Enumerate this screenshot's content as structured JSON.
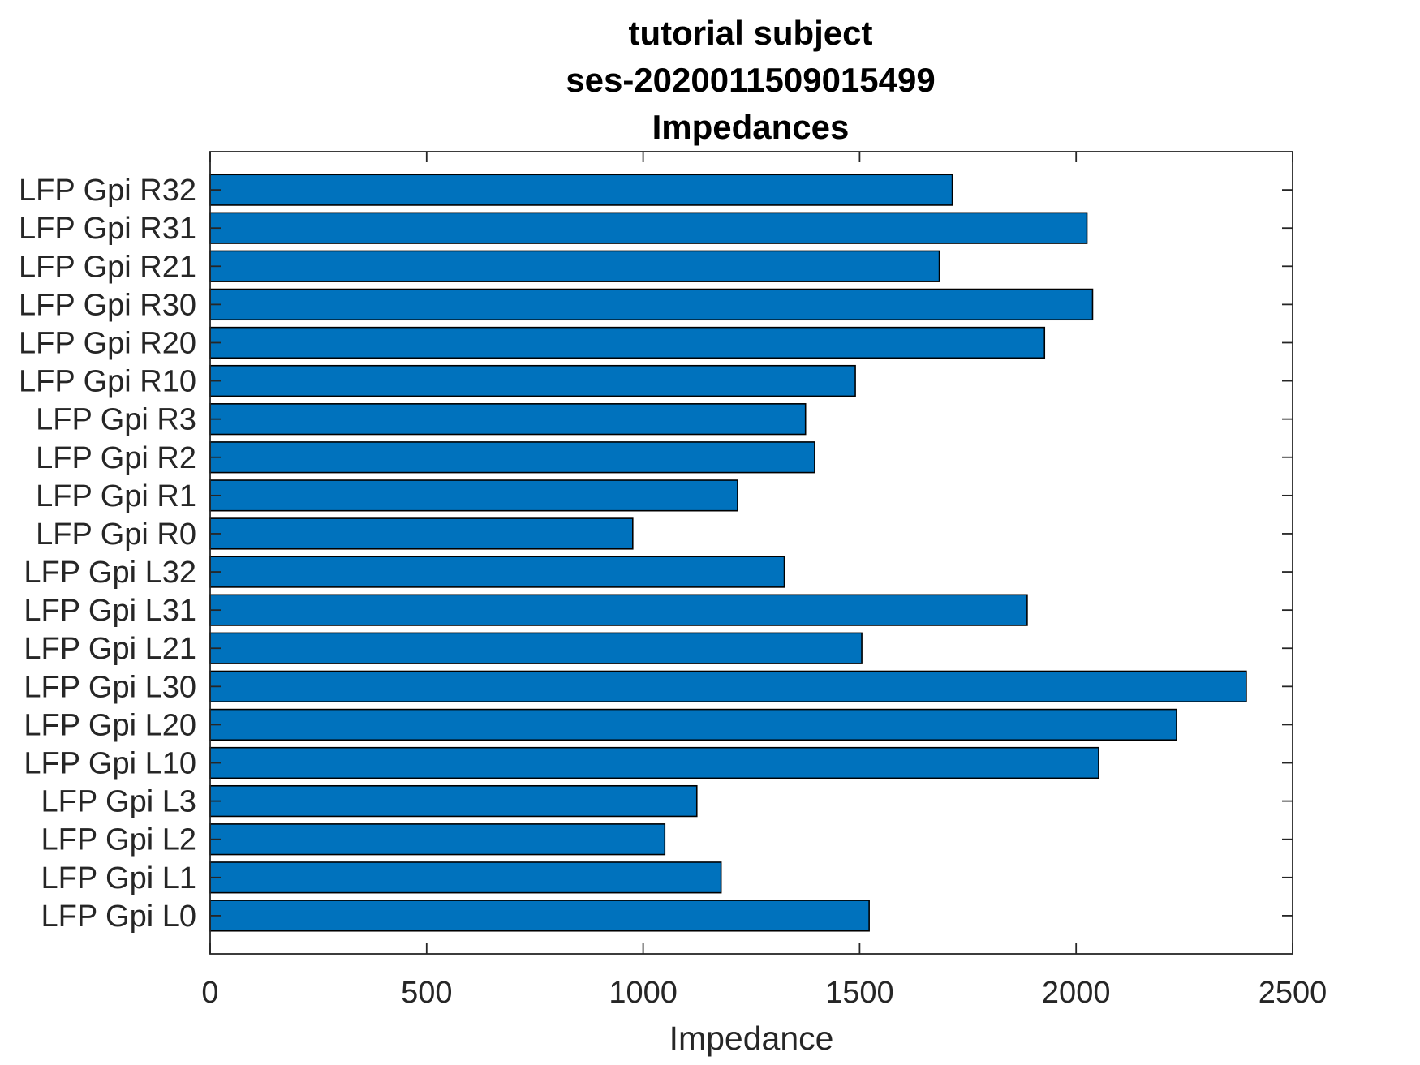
{
  "chart_data": {
    "type": "bar",
    "orientation": "horizontal",
    "title": [
      "tutorial subject",
      "ses-2020011509015499",
      "Impedances"
    ],
    "xlabel": "Impedance",
    "ylabel": "",
    "xlim": [
      0,
      2500
    ],
    "xticks": [
      0,
      500,
      1000,
      1500,
      2000,
      2500
    ],
    "grid": false,
    "legend": "none",
    "bar_color": "#0072bd",
    "categories": [
      "LFP Gpi L0",
      "LFP Gpi L1",
      "LFP Gpi L2",
      "LFP Gpi L3",
      "LFP Gpi L10",
      "LFP Gpi L20",
      "LFP Gpi L30",
      "LFP Gpi L21",
      "LFP Gpi L31",
      "LFP Gpi L32",
      "LFP Gpi R0",
      "LFP Gpi R1",
      "LFP Gpi R2",
      "LFP Gpi R3",
      "LFP Gpi R10",
      "LFP Gpi R20",
      "LFP Gpi R30",
      "LFP Gpi R21",
      "LFP Gpi R31",
      "LFP Gpi R32"
    ],
    "values": [
      1522,
      1180,
      1050,
      1124,
      2052,
      2232,
      2393,
      1505,
      1887,
      1326,
      976,
      1218,
      1396,
      1375,
      1490,
      1927,
      2038,
      1684,
      2025,
      1714
    ]
  }
}
